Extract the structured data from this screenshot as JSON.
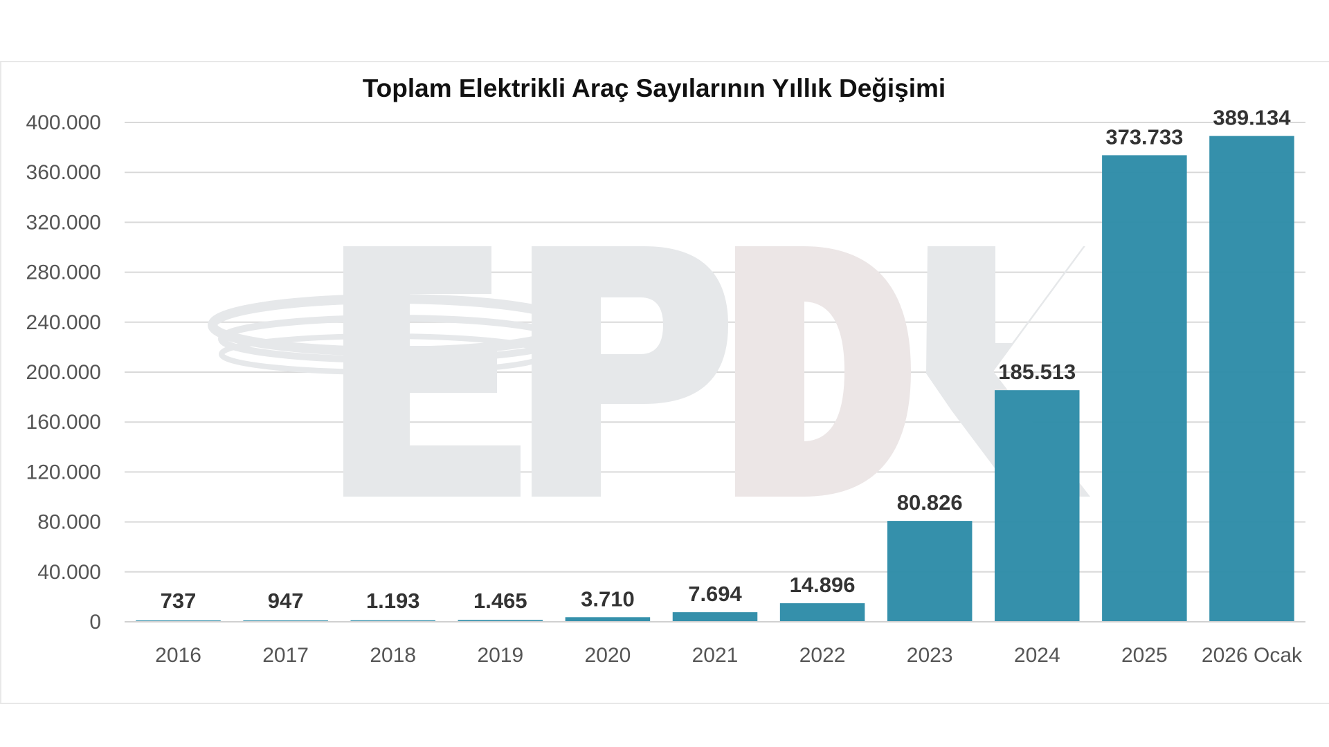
{
  "colors": {
    "bar": "#2e8ca8",
    "grid": "#d9d9d9",
    "watermark": "#e6e8ea",
    "watermark_accent": "#ece6e6"
  },
  "watermark": {
    "text": "EPDK"
  },
  "chart_data": {
    "type": "bar",
    "title": "Toplam Elektrikli Araç Sayılarının Yıllık Değişimi",
    "xlabel": "",
    "ylabel": "",
    "ylim": [
      0,
      400000
    ],
    "yticks": [
      0,
      40000,
      80000,
      120000,
      160000,
      200000,
      240000,
      280000,
      320000,
      360000,
      400000
    ],
    "ytick_labels": [
      "0",
      "40.000",
      "80.000",
      "120.000",
      "160.000",
      "200.000",
      "240.000",
      "280.000",
      "320.000",
      "360.000",
      "400.000"
    ],
    "grid": true,
    "legend": "none",
    "categories": [
      "2016",
      "2017",
      "2018",
      "2019",
      "2020",
      "2021",
      "2022",
      "2023",
      "2024",
      "2025",
      "2026 Ocak"
    ],
    "values": [
      737,
      947,
      1193,
      1465,
      3710,
      7694,
      14896,
      80826,
      185513,
      373733,
      389134
    ],
    "data_labels": [
      "737",
      "947",
      "1.193",
      "1.465",
      "3.710",
      "7.694",
      "14.896",
      "80.826",
      "185.513",
      "373.733",
      "389.134"
    ]
  }
}
